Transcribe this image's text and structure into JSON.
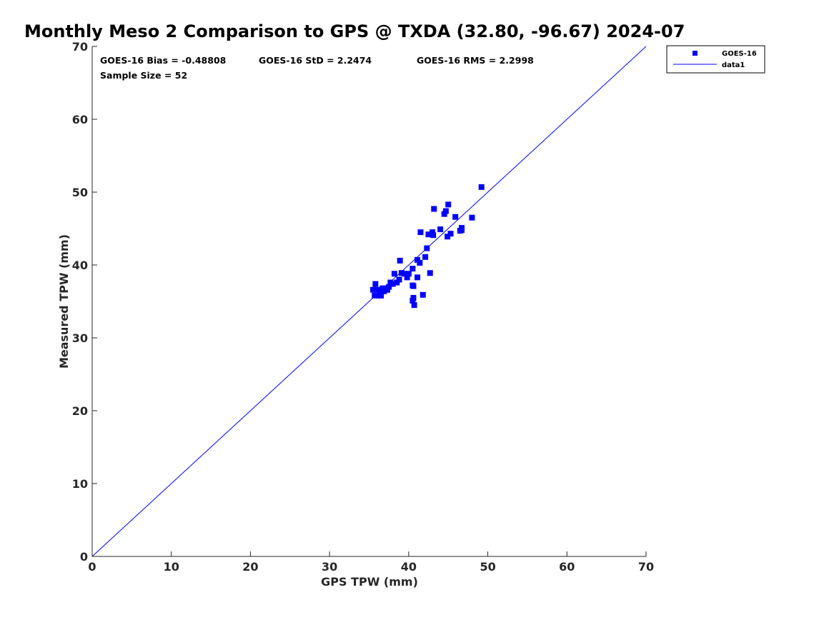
{
  "chart_data": {
    "type": "scatter",
    "title": "Monthly Meso 2 Comparison to GPS @ TXDA (32.80, -96.67) 2024-07",
    "xlabel": "GPS TPW (mm)",
    "ylabel": "Measured TPW (mm)",
    "xlim": [
      0,
      70
    ],
    "ylim": [
      0,
      70
    ],
    "xticks": [
      "0",
      "10",
      "20",
      "30",
      "40",
      "50",
      "60",
      "70"
    ],
    "yticks": [
      "0",
      "10",
      "20",
      "30",
      "40",
      "50",
      "60",
      "70"
    ],
    "grid": false,
    "legend_position": "top-right",
    "annotations": {
      "bias": "GOES-16 Bias = -0.48808",
      "std": "GOES-16 StD = 2.2474",
      "rms": "GOES-16 RMS = 2.2998",
      "sample": "Sample Size = 52"
    },
    "series": [
      {
        "name": "GOES-16",
        "kind": "markers",
        "marker": "square",
        "color": "#0000ff",
        "points": [
          [
            35.5,
            36.6
          ],
          [
            35.7,
            35.8
          ],
          [
            35.8,
            37.4
          ],
          [
            36.0,
            36.6
          ],
          [
            36.2,
            35.8
          ],
          [
            36.4,
            36.5
          ],
          [
            36.5,
            35.8
          ],
          [
            36.7,
            36.8
          ],
          [
            36.9,
            36.4
          ],
          [
            37.1,
            36.8
          ],
          [
            37.3,
            36.6
          ],
          [
            37.5,
            37.0
          ],
          [
            37.7,
            37.6
          ],
          [
            38.0,
            37.4
          ],
          [
            38.2,
            38.8
          ],
          [
            38.5,
            37.6
          ],
          [
            38.8,
            38.0
          ],
          [
            38.9,
            40.6
          ],
          [
            39.1,
            38.9
          ],
          [
            39.5,
            38.8
          ],
          [
            39.8,
            38.3
          ],
          [
            40.0,
            38.8
          ],
          [
            40.5,
            39.5
          ],
          [
            40.5,
            37.2
          ],
          [
            40.6,
            37.1
          ],
          [
            40.5,
            35.1
          ],
          [
            40.6,
            35.5
          ],
          [
            40.7,
            34.5
          ],
          [
            41.1,
            40.7
          ],
          [
            41.1,
            38.3
          ],
          [
            41.4,
            40.3
          ],
          [
            41.5,
            44.5
          ],
          [
            41.8,
            35.9
          ],
          [
            42.1,
            41.1
          ],
          [
            42.3,
            42.3
          ],
          [
            42.5,
            44.2
          ],
          [
            42.7,
            38.9
          ],
          [
            43.0,
            44.5
          ],
          [
            43.1,
            44.1
          ],
          [
            43.2,
            47.7
          ],
          [
            44.0,
            44.9
          ],
          [
            44.5,
            47.0
          ],
          [
            44.7,
            47.4
          ],
          [
            44.9,
            43.9
          ],
          [
            45.0,
            48.3
          ],
          [
            45.3,
            44.3
          ],
          [
            45.9,
            46.6
          ],
          [
            46.5,
            44.7
          ],
          [
            46.7,
            45.1
          ],
          [
            46.7,
            44.8
          ],
          [
            48.0,
            46.5
          ],
          [
            49.2,
            50.7
          ]
        ]
      },
      {
        "name": "data1",
        "kind": "line",
        "color": "#0000ff",
        "points": [
          [
            0,
            0
          ],
          [
            70,
            70
          ]
        ]
      }
    ]
  }
}
